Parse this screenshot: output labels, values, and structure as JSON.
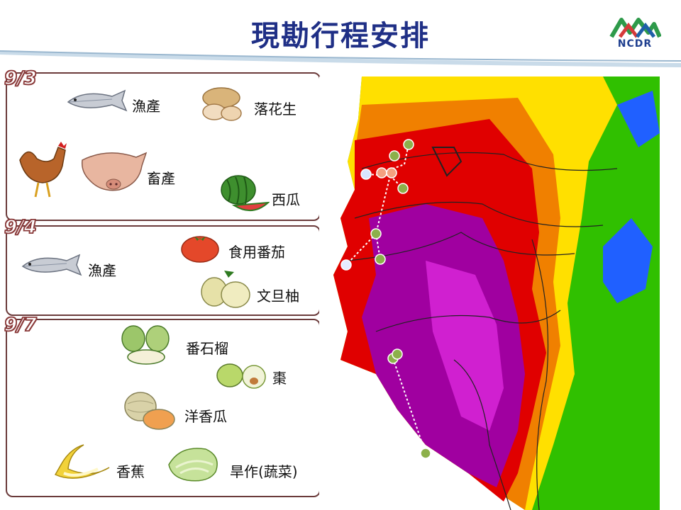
{
  "header": {
    "title": "現勘行程安排",
    "logo_text": "NCDR"
  },
  "days": [
    {
      "date": "9/3",
      "items": [
        "漁產",
        "落花生",
        "畜產",
        "西瓜"
      ]
    },
    {
      "date": "9/4",
      "items": [
        "漁產",
        "食用番茄",
        "文旦柚"
      ]
    },
    {
      "date": "9/7",
      "items": [
        "番石榴",
        "棗",
        "洋香瓜",
        "香蕉",
        "旱作(蔬菜)"
      ]
    }
  ],
  "map": {
    "colors": [
      "#e00000",
      "#a000a0",
      "#d020d0",
      "#f08000",
      "#ffe000",
      "#30c000",
      "#2060ff"
    ]
  }
}
